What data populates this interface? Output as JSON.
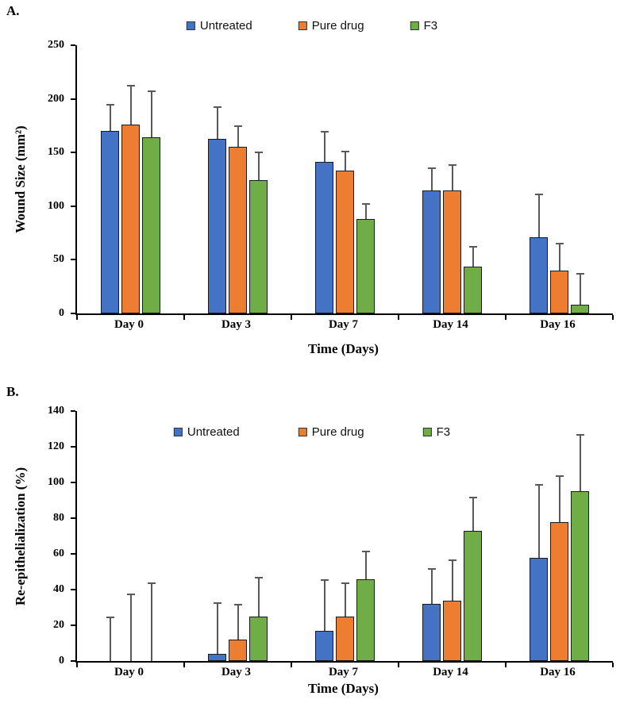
{
  "accent_colors": {
    "untreated": "#4472C4",
    "pure_drug": "#ED7D31",
    "f3": "#70AD47",
    "error_bar": "#595959"
  },
  "chart_data": [
    {
      "id": "A",
      "type": "bar",
      "panel_label": "A.",
      "title": "",
      "xlabel": "Time (Days)",
      "ylabel": "Wound Size (mm²)",
      "ylim": [
        0,
        250
      ],
      "yticks": [
        0,
        50,
        100,
        150,
        200,
        250
      ],
      "grid": false,
      "legend_position": "top",
      "categories": [
        "Day 0",
        "Day 3",
        "Day 7",
        "Day 14",
        "Day 16"
      ],
      "series": [
        {
          "name": "Untreated",
          "color": "#4472C4",
          "values": [
            170,
            163,
            141,
            115,
            71
          ],
          "errors": [
            25,
            30,
            29,
            21,
            41
          ]
        },
        {
          "name": "Pure drug",
          "color": "#ED7D31",
          "values": [
            176,
            155,
            133,
            115,
            40
          ],
          "errors": [
            37,
            20,
            19,
            24,
            26
          ]
        },
        {
          "name": "F3",
          "color": "#70AD47",
          "values": [
            164,
            124,
            88,
            44,
            8
          ],
          "errors": [
            44,
            27,
            15,
            19,
            30
          ]
        }
      ]
    },
    {
      "id": "B",
      "type": "bar",
      "panel_label": "B.",
      "title": "",
      "xlabel": "Time (Days)",
      "ylabel": "Re-epithelialization (%)",
      "ylim": [
        0,
        140
      ],
      "yticks": [
        0,
        20,
        40,
        60,
        80,
        100,
        120,
        140
      ],
      "grid": false,
      "legend_position": "inside-top",
      "categories": [
        "Day 0",
        "Day 3",
        "Day 7",
        "Day 14",
        "Day 16"
      ],
      "series": [
        {
          "name": "Untreated",
          "color": "#4472C4",
          "values": [
            0,
            4,
            17,
            32,
            58
          ],
          "errors": [
            25,
            29,
            29,
            20,
            41
          ]
        },
        {
          "name": "Pure drug",
          "color": "#ED7D31",
          "values": [
            0,
            12,
            25,
            34,
            78
          ],
          "errors": [
            38,
            20,
            19,
            23,
            26
          ]
        },
        {
          "name": "F3",
          "color": "#70AD47",
          "values": [
            0,
            25,
            46,
            73,
            95
          ],
          "errors": [
            44,
            22,
            16,
            19,
            32
          ]
        }
      ]
    }
  ]
}
